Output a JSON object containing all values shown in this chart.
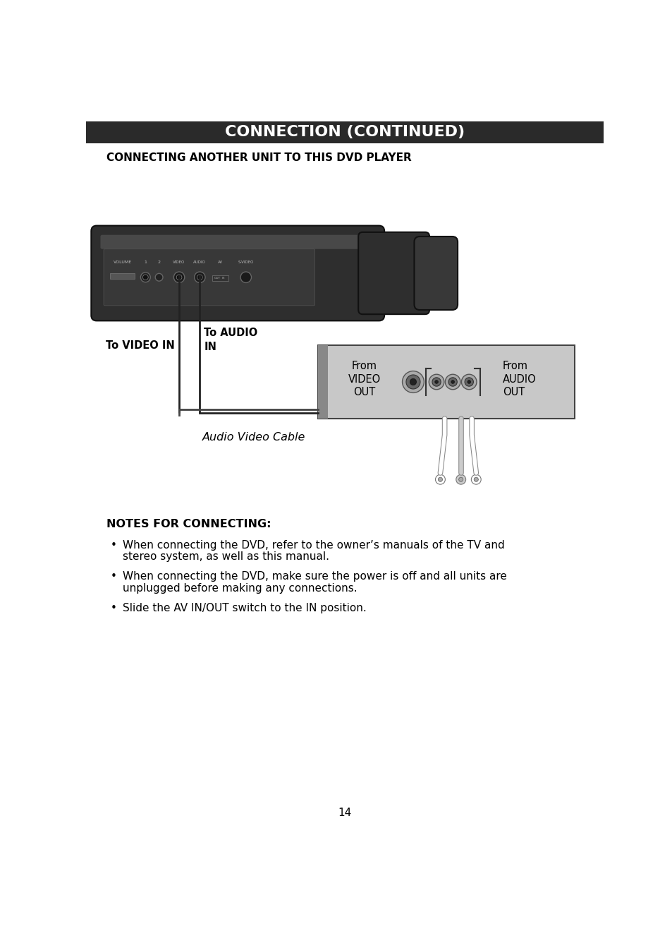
{
  "title": "CONNECTION (CONTINUED)",
  "title_bg": "#2a2a2a",
  "title_color": "#ffffff",
  "subtitle": "CONNECTING ANOTHER UNIT TO THIS DVD PLAYER",
  "cable_label": "Audio Video Cable",
  "from_video_out": "From\nVIDEO\nOUT",
  "from_audio_out": "From\nAUDIO\nOUT",
  "to_video_in": "To VIDEO IN",
  "to_audio_in": "To AUDIO\nIN",
  "notes_title": "NOTES FOR CONNECTING:",
  "notes": [
    "When connecting the DVD, refer to the owner’s manuals of the TV and stereo system, as well as this manual.",
    "When connecting the DVD, make sure the power is off and all units are unplugged before making any connections.",
    "Slide the AV IN/OUT switch to the IN position."
  ],
  "page_number": "14",
  "bg_color": "#ffffff",
  "text_color": "#000000"
}
